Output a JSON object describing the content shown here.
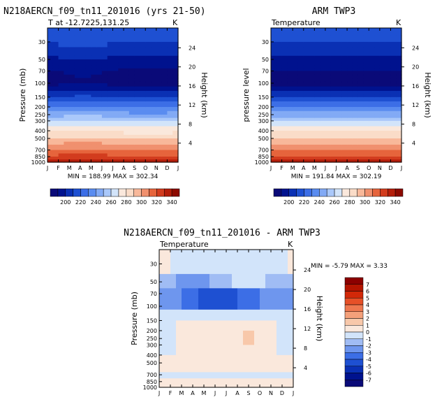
{
  "chart_data": [
    {
      "type": "heatmap",
      "title": "N218AERCN_f09_tn11_201016 (yrs 21-50)",
      "subtitle": "T at -12.7225,131.25",
      "units": "K",
      "ylabel": "Pressure (mb)",
      "ylabel2": "Height (km)",
      "months": [
        "J",
        "F",
        "M",
        "A",
        "M",
        "J",
        "J",
        "A",
        "S",
        "O",
        "N",
        "D",
        "J"
      ],
      "pressure_ticks": [
        "30",
        "50",
        "70",
        "100",
        "150",
        "200",
        "250",
        "300",
        "400",
        "500",
        "700",
        "850",
        "1000"
      ],
      "height_ticks": [
        "24",
        "20",
        "16",
        "12",
        "8",
        "4"
      ],
      "stats": "MIN = 188.99  MAX = 302.34",
      "colorbar_labels": [
        "200",
        "220",
        "240",
        "260",
        "280",
        "300",
        "320",
        "340"
      ]
    },
    {
      "type": "heatmap",
      "title": "ARM TWP3",
      "subtitle": "Temperature",
      "units": "K",
      "ylabel": "pressure level",
      "ylabel2": "Height (km)",
      "months": [
        "J",
        "F",
        "M",
        "A",
        "M",
        "J",
        "J",
        "A",
        "S",
        "O",
        "N",
        "D",
        "J"
      ],
      "pressure_ticks": [
        "30",
        "50",
        "70",
        "100",
        "150",
        "200",
        "250",
        "300",
        "400",
        "500",
        "700",
        "850",
        "1000"
      ],
      "height_ticks": [
        "24",
        "20",
        "16",
        "12",
        "8",
        "4"
      ],
      "stats": "MIN = 191.84  MAX = 302.19",
      "colorbar_labels": [
        "200",
        "220",
        "240",
        "260",
        "280",
        "300",
        "320",
        "340"
      ]
    },
    {
      "type": "heatmap",
      "title": "N218AERCN_f09_tn11_201016 - ARM TWP3",
      "subtitle": "Temperature",
      "units": "K",
      "ylabel": "Pressure (mb)",
      "ylabel2": "Height (km)",
      "months": [
        "J",
        "F",
        "M",
        "A",
        "M",
        "J",
        "J",
        "A",
        "S",
        "O",
        "N",
        "D",
        "J"
      ],
      "pressure_ticks": [
        "30",
        "50",
        "70",
        "100",
        "150",
        "200",
        "250",
        "300",
        "400",
        "500",
        "700",
        "850",
        "1000"
      ],
      "height_ticks": [
        "24",
        "20",
        "16",
        "12",
        "8",
        "4"
      ],
      "stats": "MIN =  -5.79  MAX =   3.33",
      "colorbar_labels": [
        "7",
        "6",
        "5",
        "4",
        "3",
        "2",
        "1",
        "0",
        "-1",
        "-2",
        "-3",
        "-4",
        "-5",
        "-6",
        "-7"
      ]
    }
  ],
  "colors": {
    "temp_scale": [
      "#0a0a78",
      "#00128e",
      "#0a30b4",
      "#1e50d2",
      "#3c6ee6",
      "#5a8cf0",
      "#82aaf5",
      "#aac8fa",
      "#d2e4fa",
      "#fae8dc",
      "#fadcc8",
      "#f8b89a",
      "#f0906e",
      "#e6643c",
      "#d23c1e",
      "#b41e0a",
      "#8c0a00"
    ],
    "diff_scale": [
      "#0a0a78",
      "#00128e",
      "#0a30b4",
      "#1e50d2",
      "#3c6ee6",
      "#6e96ee",
      "#a0bcf4",
      "#d2e4fa",
      "#fae8dc",
      "#f8c8aa",
      "#f4a07a",
      "#ee7850",
      "#e65028",
      "#d22808",
      "#b41400",
      "#8c0000"
    ]
  }
}
